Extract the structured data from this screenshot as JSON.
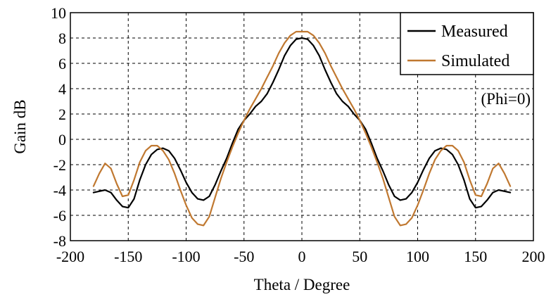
{
  "chart_data": {
    "type": "line",
    "title": "",
    "xlabel": "Theta / Degree",
    "ylabel": "Gain dB",
    "xlim": [
      -200,
      200
    ],
    "ylim": [
      -8,
      10
    ],
    "xticks": [
      -200,
      -150,
      -100,
      -50,
      0,
      50,
      100,
      150,
      200
    ],
    "yticks": [
      -8,
      -6,
      -4,
      -2,
      0,
      2,
      4,
      6,
      8,
      10
    ],
    "grid": true,
    "legend_position": "top-right",
    "annotation": "(Phi=0)",
    "series": [
      {
        "name": "Measured",
        "color": "#000000",
        "x": [
          -180,
          -175,
          -170,
          -165,
          -160,
          -155,
          -150,
          -145,
          -140,
          -135,
          -130,
          -125,
          -120,
          -115,
          -110,
          -105,
          -100,
          -95,
          -90,
          -85,
          -80,
          -75,
          -70,
          -65,
          -60,
          -55,
          -50,
          -45,
          -40,
          -35,
          -30,
          -25,
          -20,
          -15,
          -10,
          -5,
          0,
          5,
          10,
          15,
          20,
          25,
          30,
          35,
          40,
          45,
          50,
          55,
          60,
          65,
          70,
          75,
          80,
          85,
          90,
          95,
          100,
          105,
          110,
          115,
          120,
          125,
          130,
          135,
          140,
          145,
          150,
          155,
          160,
          165,
          170,
          175,
          180
        ],
        "y": [
          -4.2,
          -4.1,
          -4.0,
          -4.2,
          -4.8,
          -5.3,
          -5.4,
          -4.7,
          -3.2,
          -2.0,
          -1.2,
          -0.8,
          -0.7,
          -0.9,
          -1.5,
          -2.4,
          -3.4,
          -4.2,
          -4.7,
          -4.8,
          -4.5,
          -3.6,
          -2.5,
          -1.5,
          -0.3,
          0.8,
          1.5,
          2.0,
          2.6,
          3.0,
          3.6,
          4.5,
          5.5,
          6.6,
          7.4,
          7.9,
          8.0,
          7.9,
          7.4,
          6.6,
          5.5,
          4.5,
          3.6,
          3.0,
          2.6,
          2.0,
          1.5,
          0.8,
          -0.3,
          -1.5,
          -2.5,
          -3.6,
          -4.5,
          -4.8,
          -4.7,
          -4.2,
          -3.4,
          -2.4,
          -1.5,
          -0.9,
          -0.7,
          -0.8,
          -1.2,
          -2.0,
          -3.2,
          -4.7,
          -5.4,
          -5.3,
          -4.8,
          -4.2,
          -4.0,
          -4.1,
          -4.2
        ]
      },
      {
        "name": "Simulated",
        "color": "#c07830",
        "x": [
          -180,
          -175,
          -170,
          -165,
          -160,
          -155,
          -150,
          -145,
          -140,
          -135,
          -130,
          -125,
          -120,
          -115,
          -110,
          -105,
          -100,
          -95,
          -90,
          -85,
          -80,
          -75,
          -70,
          -65,
          -60,
          -55,
          -50,
          -45,
          -40,
          -35,
          -30,
          -25,
          -20,
          -15,
          -10,
          -5,
          0,
          5,
          10,
          15,
          20,
          25,
          30,
          35,
          40,
          45,
          50,
          55,
          60,
          65,
          70,
          75,
          80,
          85,
          90,
          95,
          100,
          105,
          110,
          115,
          120,
          125,
          130,
          135,
          140,
          145,
          150,
          155,
          160,
          165,
          170,
          175,
          180
        ],
        "y": [
          -3.7,
          -2.7,
          -1.9,
          -2.3,
          -3.5,
          -4.5,
          -4.4,
          -3.2,
          -1.8,
          -0.9,
          -0.5,
          -0.5,
          -0.9,
          -1.6,
          -2.7,
          -4.0,
          -5.2,
          -6.2,
          -6.7,
          -6.8,
          -6.1,
          -4.6,
          -3.1,
          -1.8,
          -0.6,
          0.5,
          1.5,
          2.4,
          3.2,
          4.0,
          4.9,
          5.8,
          6.8,
          7.6,
          8.2,
          8.5,
          8.5,
          8.5,
          8.2,
          7.6,
          6.8,
          5.8,
          4.9,
          4.0,
          3.2,
          2.4,
          1.5,
          0.5,
          -0.6,
          -1.8,
          -3.1,
          -4.6,
          -6.1,
          -6.8,
          -6.7,
          -6.2,
          -5.2,
          -4.0,
          -2.7,
          -1.6,
          -0.9,
          -0.5,
          -0.5,
          -0.9,
          -1.8,
          -3.2,
          -4.4,
          -4.5,
          -3.5,
          -2.3,
          -1.9,
          -2.7,
          -3.7
        ]
      }
    ]
  }
}
